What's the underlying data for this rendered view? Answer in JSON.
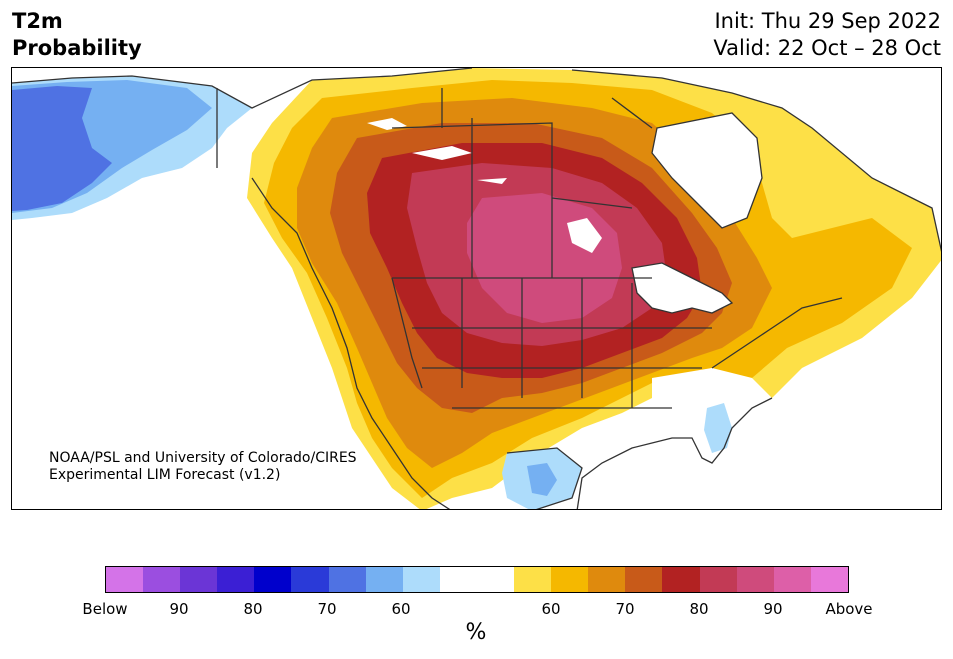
{
  "header": {
    "title_line1": "T2m",
    "title_line2": "Probability",
    "init": "Init: Thu 29 Sep 2022",
    "valid": "Valid: 22 Oct – 28 Oct"
  },
  "credit": {
    "line1": "NOAA/PSL and University of Colorado/CIRES",
    "line2": "Experimental LIM Forecast (v1.2)"
  },
  "colorbar": {
    "unit": "%",
    "colors": [
      "#d473e8",
      "#9b4ee0",
      "#6b35d6",
      "#3b1fd4",
      "#0000cc",
      "#2a3ad8",
      "#4f72e3",
      "#75b0f2",
      "#addcfb",
      "#ffffff",
      "#fde047",
      "#f5b800",
      "#df8a0d",
      "#c85a19",
      "#b22222",
      "#c23a55",
      "#cf4b7c",
      "#dd5fa8",
      "#e878da"
    ],
    "labels": [
      "Below",
      "90",
      "80",
      "70",
      "60",
      "60",
      "70",
      "80",
      "90",
      "Above"
    ]
  },
  "map": {
    "region": "North America",
    "palette": {
      "warm_outer": "#fde047",
      "warm_2": "#f5b800",
      "warm_3": "#df8a0d",
      "warm_4": "#c85a19",
      "warm_5": "#b22222",
      "warm_6": "#c23a55",
      "warm_7": "#cf4b7c",
      "cold_1": "#addcfb",
      "cold_2": "#75b0f2",
      "cold_3": "#4f72e3",
      "line": "#333333"
    }
  }
}
